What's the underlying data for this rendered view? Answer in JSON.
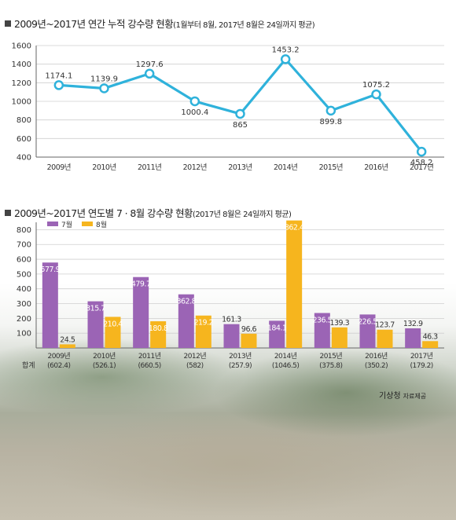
{
  "titles": {
    "chart1_main": "2009년~2017년 연간 누적 강수량 현황",
    "chart1_sub": "(1월부터 8월, 2017년 8월은 24일까지 평균)",
    "chart2_main": "2009년~2017년 연도별 7 · 8월 강수량 현황",
    "chart2_sub": "(2017년 8월은 24일까지 평균)"
  },
  "source": {
    "agency": "기상청",
    "note": "자료제공"
  },
  "colors": {
    "line": "#2fb2db",
    "july": "#9b64b5",
    "august": "#f6b51e",
    "grid": "#cfcfcf",
    "axis": "#666666"
  },
  "chart_data": [
    {
      "type": "line",
      "title": "2009년~2017년 연간 누적 강수량 현황(1월부터 8월, 2017년 8월은 24일까지 평균)",
      "categories": [
        "2009년",
        "2010년",
        "2011년",
        "2012년",
        "2013년",
        "2014년",
        "2015년",
        "2016년",
        "2017년"
      ],
      "series": [
        {
          "values": [
            1174.1,
            1139.9,
            1297.6,
            1000.4,
            865,
            1453.2,
            899.8,
            1075.2,
            458.2
          ]
        }
      ],
      "data_labels": [
        "1174.1",
        "1139.9",
        "1297.6",
        "1000.4",
        "865",
        "1453.2",
        "899.8",
        "1075.2",
        "458.2"
      ],
      "ylim": [
        400,
        1600
      ],
      "yticks": [
        400,
        600,
        800,
        1000,
        1200,
        1400,
        1600
      ],
      "grid": true
    },
    {
      "type": "bar",
      "title": "2009년~2017년 연도별 7 · 8월 강수량 현황(2017년 8월은 24일까지 평균)",
      "categories": [
        "2009년",
        "2010년",
        "2011년",
        "2012년",
        "2013년",
        "2014년",
        "2015년",
        "2016년",
        "2017년"
      ],
      "totals_label": "합계",
      "totals": [
        "(602.4)",
        "(526.1)",
        "(660.5)",
        "(582)",
        "(257.9)",
        "(1046.5)",
        "(375.8)",
        "(350.2)",
        "(179.2)"
      ],
      "series": [
        {
          "name": "7월",
          "values": [
            577.9,
            315.7,
            479.7,
            362.8,
            161.3,
            184.1,
            236.5,
            226.5,
            132.9
          ],
          "labels": [
            "577.9",
            "315.7",
            "479.7",
            "362.8",
            "161.3",
            "184.1",
            "236.5",
            "226.5",
            "132.9"
          ]
        },
        {
          "name": "8월",
          "values": [
            24.5,
            210.4,
            180.8,
            219.2,
            96.6,
            862.4,
            139.3,
            123.7,
            46.3
          ],
          "labels": [
            "24.5",
            "210.4",
            "180.8",
            "219.2",
            "96.6",
            "862.4",
            "139.3",
            "123.7",
            "46.3"
          ]
        }
      ],
      "legend_position": "top-left",
      "ylim": [
        0,
        850
      ],
      "yticks": [
        100,
        200,
        300,
        400,
        500,
        600,
        700,
        800
      ],
      "grid": true
    }
  ]
}
